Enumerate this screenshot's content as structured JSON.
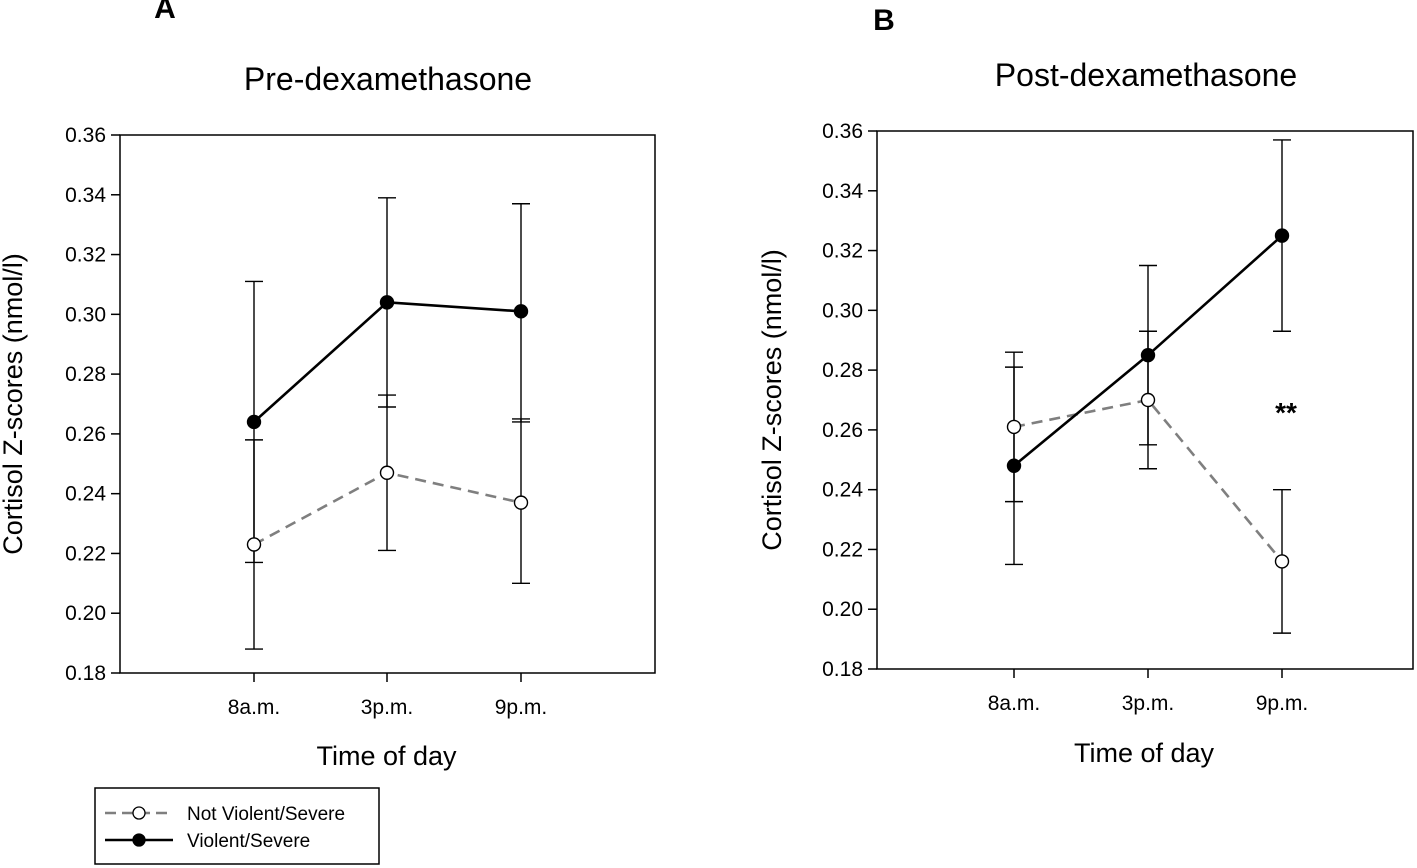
{
  "legend": {
    "entries": [
      {
        "name": "Not Violent/Severe",
        "color": "#7f7f7f",
        "marker": "open-circle",
        "dash": "dashed"
      },
      {
        "name": "Violent/Severe",
        "color": "#000000",
        "marker": "filled-circle",
        "dash": "solid"
      }
    ]
  },
  "chart_data": [
    {
      "type": "line",
      "panel_label": "A",
      "title": "Pre-dexamethasone",
      "xlabel": "Time of day",
      "ylabel": "Cortisol Z-scores (nmol/l)",
      "categories": [
        "8a.m.",
        "3p.m.",
        "9p.m."
      ],
      "ylim": [
        0.18,
        0.36
      ],
      "yticks": [
        "0.18",
        "0.20",
        "0.22",
        "0.24",
        "0.26",
        "0.28",
        "0.30",
        "0.32",
        "0.34",
        "0.36"
      ],
      "series": [
        {
          "name": "Not Violent/Severe",
          "values": [
            0.223,
            0.247,
            0.237
          ],
          "err_low": [
            0.188,
            0.221,
            0.21
          ],
          "err_high": [
            0.258,
            0.273,
            0.265
          ]
        },
        {
          "name": "Violent/Severe",
          "values": [
            0.264,
            0.304,
            0.301
          ],
          "err_low": [
            0.217,
            0.269,
            0.264
          ],
          "err_high": [
            0.311,
            0.339,
            0.337
          ]
        }
      ],
      "annotations": []
    },
    {
      "type": "line",
      "panel_label": "B",
      "title": "Post-dexamethasone",
      "xlabel": "Time of day",
      "ylabel": "Cortisol Z-scores (nmol/l)",
      "categories": [
        "8a.m.",
        "3p.m.",
        "9p.m."
      ],
      "ylim": [
        0.18,
        0.36
      ],
      "yticks": [
        "0.18",
        "0.20",
        "0.22",
        "0.24",
        "0.26",
        "0.28",
        "0.30",
        "0.32",
        "0.34",
        "0.36"
      ],
      "series": [
        {
          "name": "Not Violent/Severe",
          "values": [
            0.261,
            0.27,
            0.216
          ],
          "err_low": [
            0.236,
            0.247,
            0.192
          ],
          "err_high": [
            0.286,
            0.293,
            0.24
          ]
        },
        {
          "name": "Violent/Severe",
          "values": [
            0.248,
            0.285,
            0.325
          ],
          "err_low": [
            0.215,
            0.255,
            0.293
          ],
          "err_high": [
            0.281,
            0.315,
            0.357
          ]
        }
      ],
      "annotations": [
        {
          "text": "**",
          "category": "9p.m.",
          "y": 0.266
        }
      ]
    }
  ]
}
